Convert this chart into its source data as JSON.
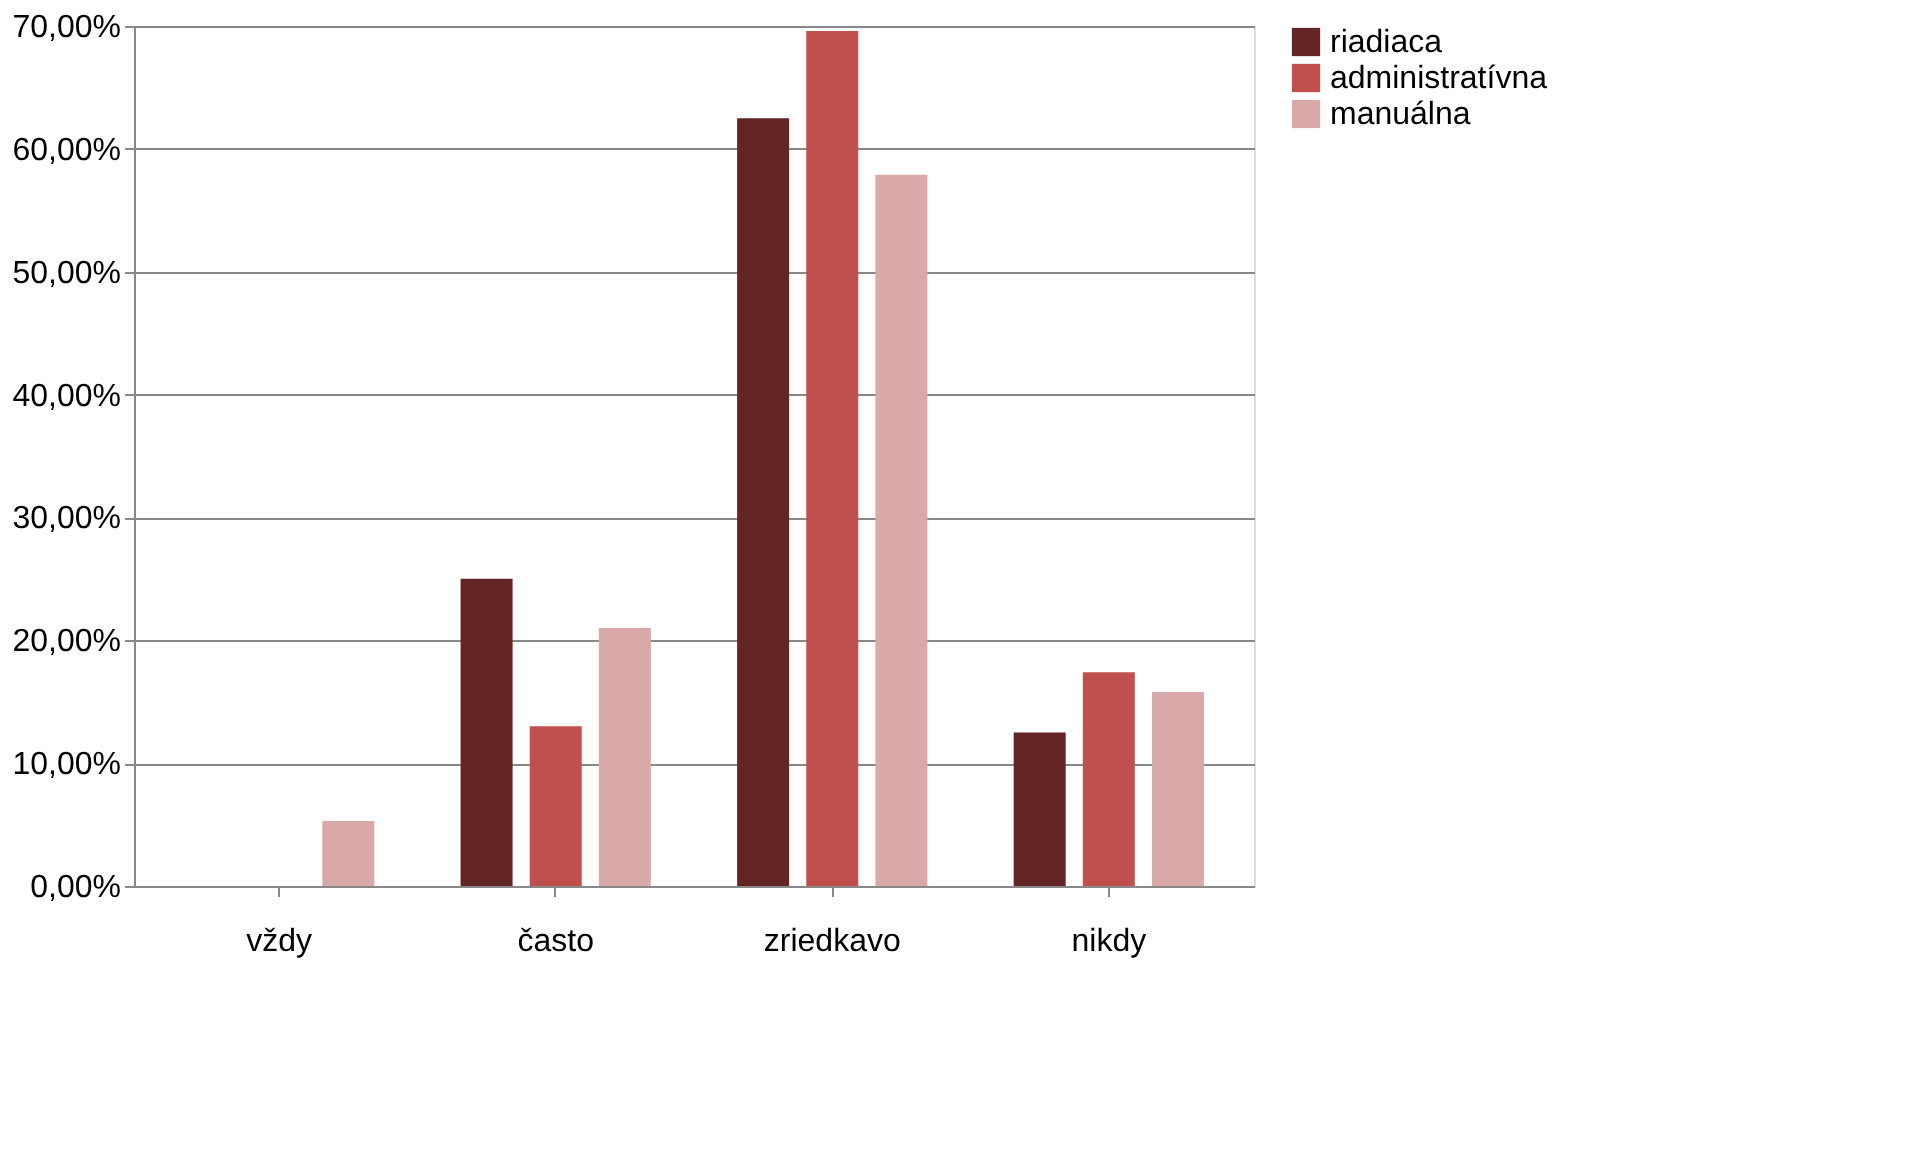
{
  "chart_data": {
    "type": "bar",
    "categories": [
      "vždy",
      "často",
      "zriedkavo",
      "nikdy"
    ],
    "series": [
      {
        "name": "riadiaca",
        "color": "#632523",
        "values": [
          0,
          25,
          62.5,
          12.5
        ]
      },
      {
        "name": "administratívna",
        "color": "#c0504d",
        "values": [
          0,
          13,
          69.6,
          17.4
        ]
      },
      {
        "name": "manuálna",
        "color": "#d9a9a9",
        "values": [
          5.3,
          21,
          57.9,
          15.8
        ]
      }
    ],
    "ylim": [
      0,
      70
    ],
    "yticks": [
      {
        "value": 0,
        "label": "0,00%"
      },
      {
        "value": 10,
        "label": "10,00%"
      },
      {
        "value": 20,
        "label": "20,00%"
      },
      {
        "value": 30,
        "label": "30,00%"
      },
      {
        "value": 40,
        "label": "40,00%"
      },
      {
        "value": 50,
        "label": "50,00%"
      },
      {
        "value": 60,
        "label": "60,00%"
      },
      {
        "value": 70,
        "label": "70,00%"
      }
    ],
    "grid": "y",
    "legend": "right"
  }
}
